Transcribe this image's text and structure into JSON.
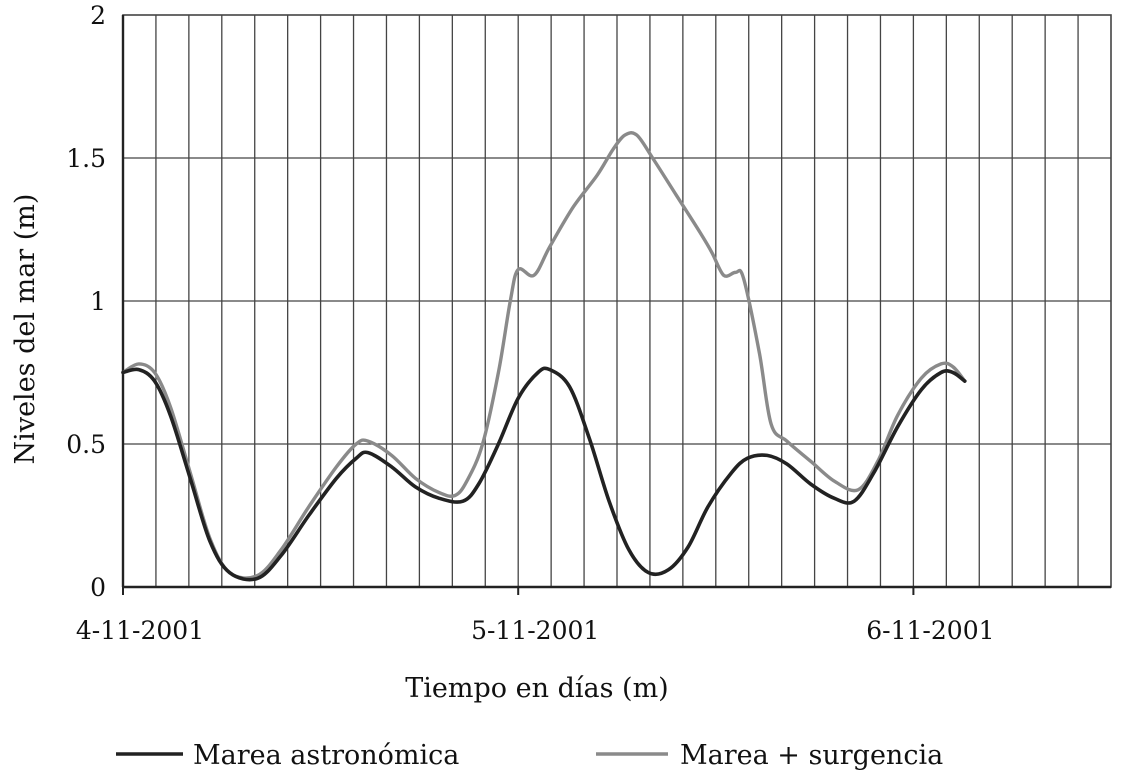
{
  "chart_data": {
    "type": "line",
    "title": "",
    "xlabel": "Tiempo en días (m)",
    "ylabel": "Niveles del mar (m)",
    "xlim": [
      0,
      2.5
    ],
    "ylim": [
      0,
      2
    ],
    "x_tick_labels": [
      {
        "x": 0,
        "label": "4-11-2001"
      },
      {
        "x": 1,
        "label": "5-11-2001"
      },
      {
        "x": 2,
        "label": "6-11-2001"
      }
    ],
    "y_ticks": [
      {
        "y": 0,
        "label": "0"
      },
      {
        "y": 0.5,
        "label": "0.5"
      },
      {
        "y": 1,
        "label": "1"
      },
      {
        "y": 1.5,
        "label": "1.5"
      },
      {
        "y": 2,
        "label": "2"
      }
    ],
    "grid": true,
    "legend_position": "bottom",
    "series": [
      {
        "name": "Marea astronómica",
        "color": "#222222",
        "points": [
          [
            0.0,
            0.75
          ],
          [
            0.04,
            0.76
          ],
          [
            0.08,
            0.72
          ],
          [
            0.12,
            0.6
          ],
          [
            0.17,
            0.38
          ],
          [
            0.22,
            0.16
          ],
          [
            0.27,
            0.05
          ],
          [
            0.34,
            0.03
          ],
          [
            0.4,
            0.11
          ],
          [
            0.47,
            0.25
          ],
          [
            0.54,
            0.38
          ],
          [
            0.59,
            0.45
          ],
          [
            0.62,
            0.47
          ],
          [
            0.68,
            0.42
          ],
          [
            0.74,
            0.35
          ],
          [
            0.8,
            0.31
          ],
          [
            0.86,
            0.3
          ],
          [
            0.9,
            0.36
          ],
          [
            0.95,
            0.5
          ],
          [
            1.0,
            0.66
          ],
          [
            1.05,
            0.75
          ],
          [
            1.08,
            0.76
          ],
          [
            1.13,
            0.7
          ],
          [
            1.18,
            0.52
          ],
          [
            1.23,
            0.3
          ],
          [
            1.28,
            0.13
          ],
          [
            1.33,
            0.05
          ],
          [
            1.38,
            0.06
          ],
          [
            1.43,
            0.14
          ],
          [
            1.48,
            0.28
          ],
          [
            1.54,
            0.4
          ],
          [
            1.58,
            0.45
          ],
          [
            1.63,
            0.46
          ],
          [
            1.68,
            0.43
          ],
          [
            1.74,
            0.36
          ],
          [
            1.8,
            0.31
          ],
          [
            1.85,
            0.3
          ],
          [
            1.9,
            0.4
          ],
          [
            1.96,
            0.56
          ],
          [
            2.02,
            0.69
          ],
          [
            2.07,
            0.75
          ],
          [
            2.1,
            0.75
          ],
          [
            2.13,
            0.72
          ]
        ]
      },
      {
        "name": "Marea + surgencia",
        "color": "#8a8a8a",
        "points": [
          [
            0.0,
            0.75
          ],
          [
            0.04,
            0.78
          ],
          [
            0.08,
            0.75
          ],
          [
            0.12,
            0.63
          ],
          [
            0.17,
            0.4
          ],
          [
            0.22,
            0.17
          ],
          [
            0.27,
            0.05
          ],
          [
            0.34,
            0.04
          ],
          [
            0.4,
            0.13
          ],
          [
            0.47,
            0.28
          ],
          [
            0.54,
            0.42
          ],
          [
            0.59,
            0.5
          ],
          [
            0.62,
            0.51
          ],
          [
            0.68,
            0.46
          ],
          [
            0.74,
            0.38
          ],
          [
            0.8,
            0.33
          ],
          [
            0.84,
            0.32
          ],
          [
            0.87,
            0.37
          ],
          [
            0.91,
            0.5
          ],
          [
            0.95,
            0.75
          ],
          [
            0.98,
            1.0
          ],
          [
            1.0,
            1.11
          ],
          [
            1.04,
            1.09
          ],
          [
            1.08,
            1.19
          ],
          [
            1.14,
            1.33
          ],
          [
            1.2,
            1.44
          ],
          [
            1.24,
            1.53
          ],
          [
            1.27,
            1.58
          ],
          [
            1.3,
            1.58
          ],
          [
            1.34,
            1.5
          ],
          [
            1.4,
            1.37
          ],
          [
            1.46,
            1.24
          ],
          [
            1.49,
            1.17
          ],
          [
            1.52,
            1.09
          ],
          [
            1.55,
            1.1
          ],
          [
            1.57,
            1.08
          ],
          [
            1.61,
            0.82
          ],
          [
            1.64,
            0.57
          ],
          [
            1.68,
            0.51
          ],
          [
            1.74,
            0.44
          ],
          [
            1.8,
            0.37
          ],
          [
            1.86,
            0.34
          ],
          [
            1.91,
            0.44
          ],
          [
            1.96,
            0.6
          ],
          [
            2.02,
            0.73
          ],
          [
            2.07,
            0.78
          ],
          [
            2.1,
            0.77
          ],
          [
            2.13,
            0.72
          ]
        ]
      }
    ]
  }
}
